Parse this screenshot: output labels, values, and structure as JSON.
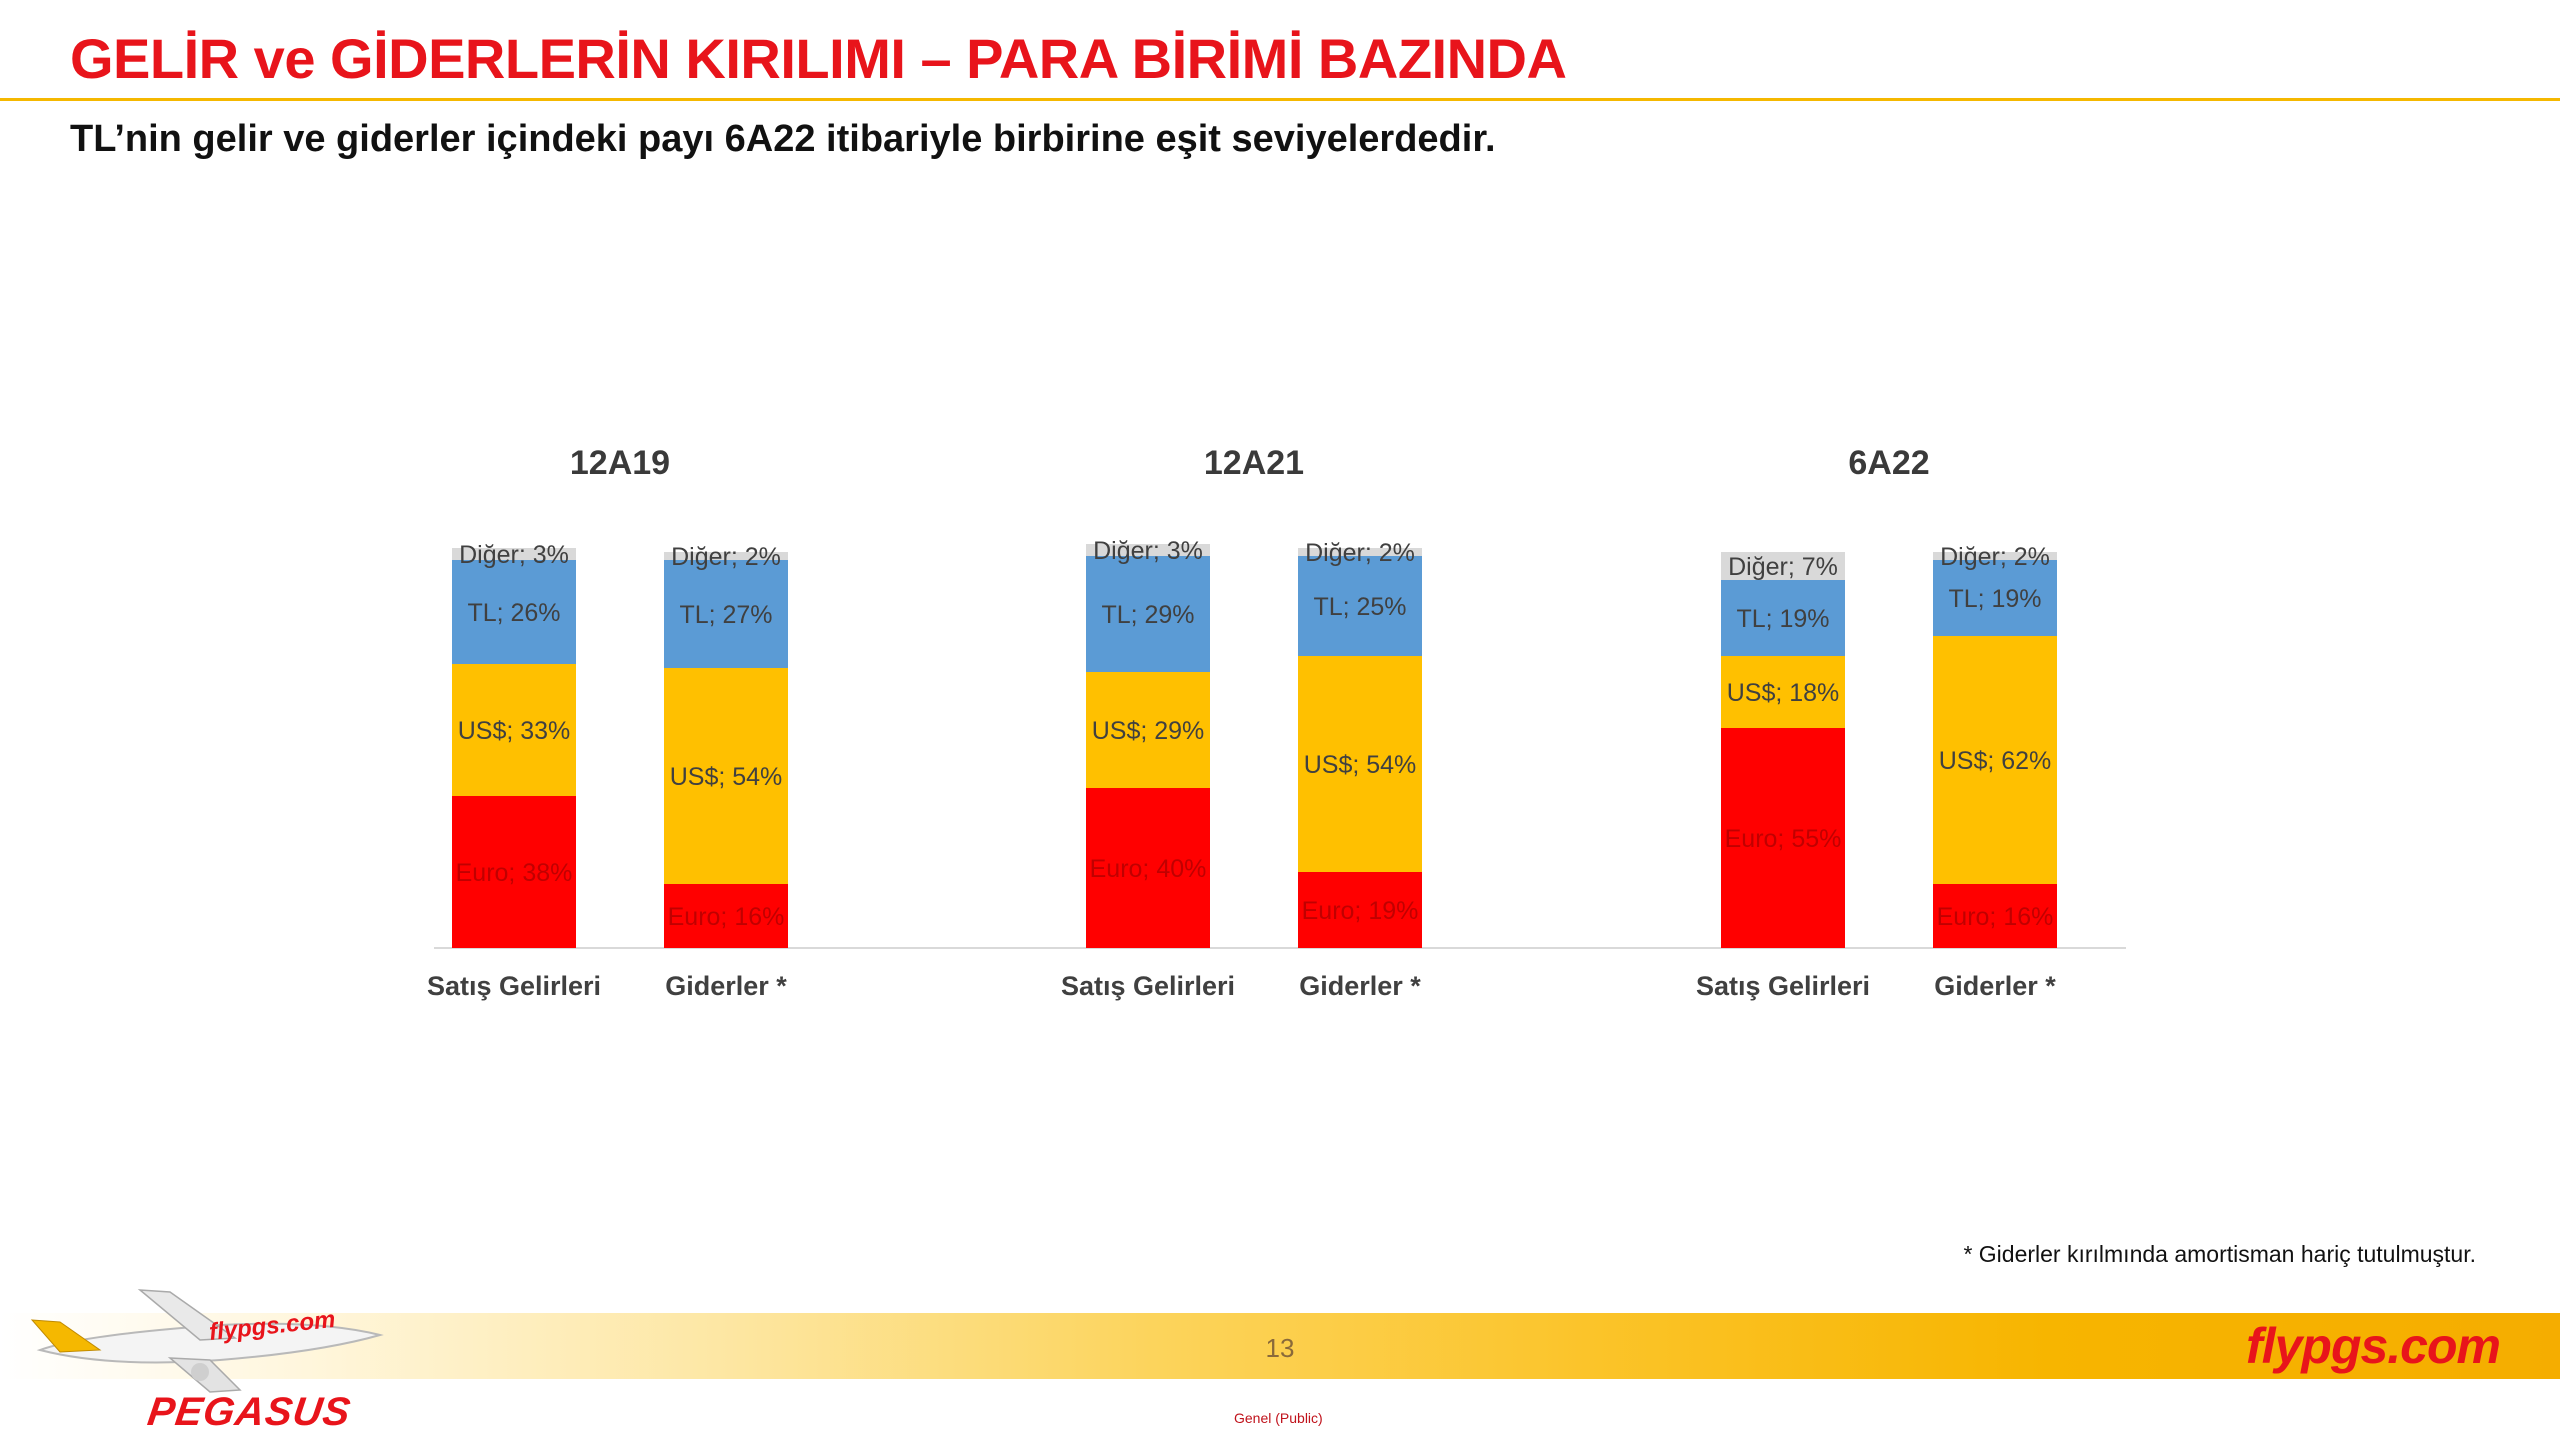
{
  "page": {
    "title": "GELİR ve GİDERLERİN KIRILIMI – PARA BİRİMİ BAZINDA",
    "subtitle": "TL’nin gelir ve giderler içindeki payı 6A22 itibariyle birbirine eşit seviyelerdedir.",
    "footnote": "* Giderler kırılmında amortisman hariç tutulmuştur.",
    "page_number": "13",
    "classification": "Genel (Public)",
    "brand_url": "flypgs.com",
    "logo_text": "PEGASUS",
    "logo_plane_text": "flypgs.com"
  },
  "colors": {
    "title": "#e8141b",
    "rule": "#f5b800",
    "euro": "#ff0000",
    "usd": "#ffc000",
    "tl": "#5b9bd5",
    "diger": "#d9d9d9"
  },
  "chart_data": {
    "type": "bar",
    "stacked": true,
    "grid": false,
    "legend": "none",
    "ylim": [
      0,
      100
    ],
    "series_order": [
      "Euro",
      "US$",
      "TL",
      "Diğer"
    ],
    "groups": [
      {
        "label": "12A19",
        "bars": [
          {
            "category": "Satış Gelirleri",
            "segments": [
              {
                "name": "Euro",
                "value": 38,
                "label": "Euro; 38%"
              },
              {
                "name": "US$",
                "value": 33,
                "label": "US$; 33%"
              },
              {
                "name": "TL",
                "value": 26,
                "label": "TL; 26%"
              },
              {
                "name": "Diğer",
                "value": 3,
                "label": "Diğer; 3%"
              }
            ]
          },
          {
            "category": "Giderler *",
            "segments": [
              {
                "name": "Euro",
                "value": 16,
                "label": "Euro; 16%"
              },
              {
                "name": "US$",
                "value": 54,
                "label": "US$; 54%"
              },
              {
                "name": "TL",
                "value": 27,
                "label": "TL; 27%"
              },
              {
                "name": "Diğer",
                "value": 2,
                "label": "Diğer; 2%"
              }
            ]
          }
        ]
      },
      {
        "label": "12A21",
        "bars": [
          {
            "category": "Satış Gelirleri",
            "segments": [
              {
                "name": "Euro",
                "value": 40,
                "label": "Euro; 40%"
              },
              {
                "name": "US$",
                "value": 29,
                "label": "US$; 29%"
              },
              {
                "name": "TL",
                "value": 29,
                "label": "TL; 29%"
              },
              {
                "name": "Diğer",
                "value": 3,
                "label": "Diğer; 3%"
              }
            ]
          },
          {
            "category": "Giderler *",
            "segments": [
              {
                "name": "Euro",
                "value": 19,
                "label": "Euro; 19%"
              },
              {
                "name": "US$",
                "value": 54,
                "label": "US$; 54%"
              },
              {
                "name": "TL",
                "value": 25,
                "label": "TL; 25%"
              },
              {
                "name": "Diğer",
                "value": 2,
                "label": "Diğer; 2%"
              }
            ]
          }
        ]
      },
      {
        "label": "6A22",
        "bars": [
          {
            "category": "Satış Gelirleri",
            "segments": [
              {
                "name": "Euro",
                "value": 55,
                "label": "Euro; 55%"
              },
              {
                "name": "US$",
                "value": 18,
                "label": "US$; 18%"
              },
              {
                "name": "TL",
                "value": 19,
                "label": "TL; 19%"
              },
              {
                "name": "Diğer",
                "value": 7,
                "label": "Diğer; 7%"
              }
            ]
          },
          {
            "category": "Giderler *",
            "segments": [
              {
                "name": "Euro",
                "value": 16,
                "label": "Euro; 16%"
              },
              {
                "name": "US$",
                "value": 62,
                "label": "US$; 62%"
              },
              {
                "name": "TL",
                "value": 19,
                "label": "TL; 19%"
              },
              {
                "name": "Diğer",
                "value": 2,
                "label": "Diğer; 2%"
              }
            ]
          }
        ]
      }
    ]
  }
}
